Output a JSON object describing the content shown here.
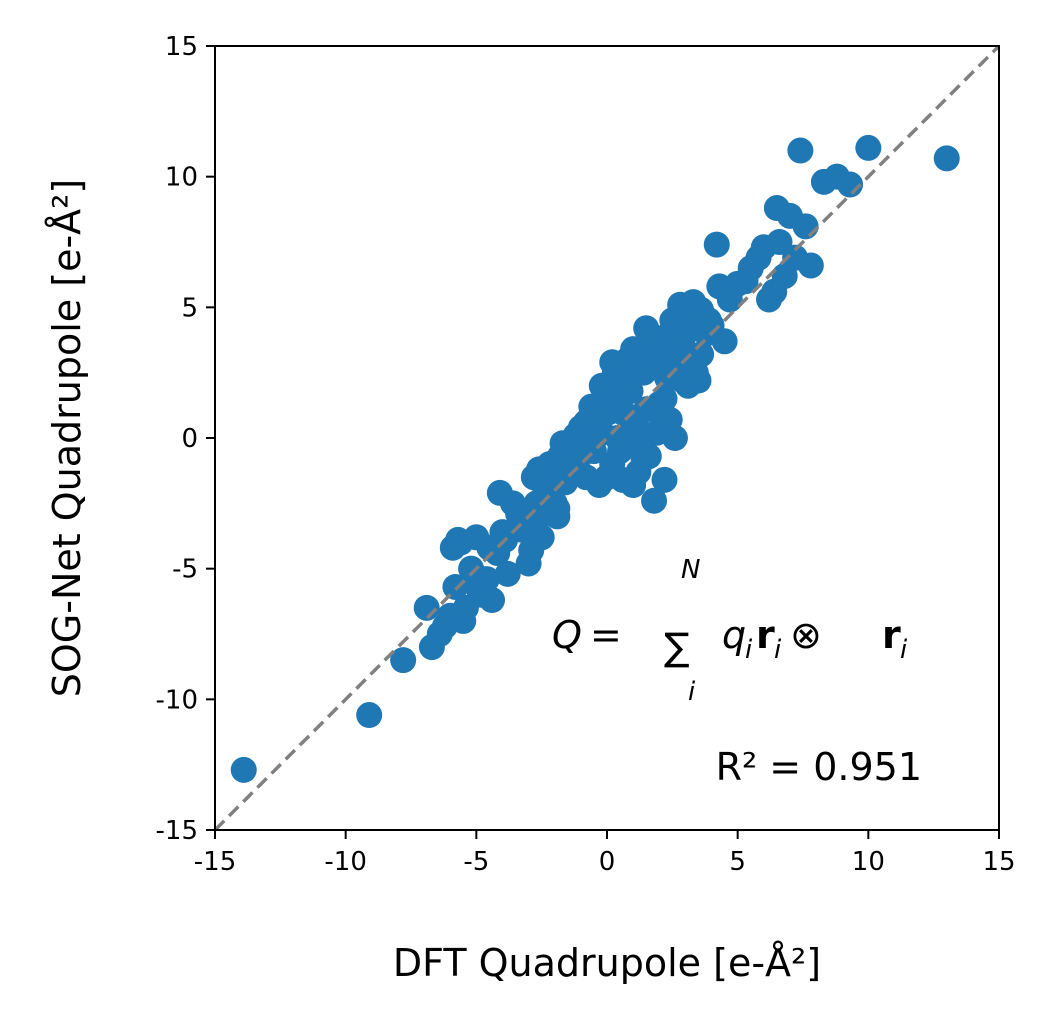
{
  "chart_data": {
    "type": "scatter",
    "title": "",
    "xlabel": "DFT Quadrupole [e-Å²]",
    "ylabel": "SOG-Net Quadrupole [e-Å²]",
    "xlim": [
      -15,
      15
    ],
    "ylim": [
      -15,
      15
    ],
    "xticks": [
      "-15",
      "-10",
      "-5",
      "0",
      "5",
      "10",
      "15"
    ],
    "yticks": [
      "-15",
      "-10",
      "-5",
      "0",
      "5",
      "10",
      "15"
    ],
    "grid": false,
    "colors": {
      "points": "#1f77b4",
      "reference_line": "#808080"
    },
    "reference_line": {
      "from": [
        -15,
        -15
      ],
      "to": [
        15,
        15
      ],
      "style": "dashed"
    },
    "annotations": {
      "formula": "Q = Σ_i^N q_i r_i ⊗ r_i",
      "r2": "R² = 0.951"
    },
    "series": [
      {
        "x": [
          -13.9,
          -9.1,
          -7.8,
          -6.9,
          -6.7,
          -6.4,
          -6.2,
          -6.0,
          -5.9,
          -5.8,
          -5.7,
          -5.6,
          -5.5,
          -5.4,
          -5.2,
          -5.0,
          -5.0,
          -4.8,
          -4.6,
          -4.5,
          -4.4,
          -4.2,
          -4.0,
          -3.9,
          -3.8,
          -3.6,
          -3.4,
          -3.2,
          -3.0,
          -2.8,
          -2.7,
          -2.6,
          -2.5,
          -2.4,
          -2.3,
          -2.2,
          -2.1,
          -2.0,
          -1.9,
          -1.8,
          -1.7,
          -1.6,
          -1.5,
          -1.4,
          -1.3,
          -1.2,
          -1.1,
          -1.0,
          -0.9,
          -0.8,
          -0.7,
          -0.6,
          -0.5,
          -0.4,
          -0.3,
          -0.2,
          -0.1,
          0.0,
          0.1,
          0.2,
          0.3,
          0.4,
          0.5,
          0.6,
          0.7,
          0.8,
          0.9,
          1.0,
          1.1,
          1.2,
          1.3,
          1.4,
          1.5,
          1.6,
          1.7,
          1.8,
          1.9,
          2.0,
          2.1,
          2.2,
          2.3,
          2.4,
          2.5,
          2.6,
          2.7,
          2.8,
          2.9,
          3.0,
          3.1,
          3.2,
          3.3,
          3.4,
          3.5,
          3.6,
          3.8,
          4.0,
          4.2,
          4.3,
          4.5,
          4.7,
          5.0,
          5.3,
          5.5,
          5.8,
          6.0,
          6.2,
          6.4,
          6.5,
          6.6,
          6.8,
          7.0,
          7.2,
          7.4,
          7.6,
          7.8,
          8.3,
          8.8,
          9.3,
          10.0,
          13.0,
          -0.5,
          0.2,
          0.6,
          1.0,
          1.4,
          1.8,
          2.2,
          -0.8,
          -1.5,
          -2.0,
          0.0,
          0.5,
          1.2,
          1.6,
          -3.3,
          -1.9,
          -0.3,
          0.9,
          2.6,
          3.1,
          3.6,
          -4.1,
          -2.6,
          -1.0,
          0.3,
          1.1,
          1.9,
          2.4,
          -0.2,
          0.7,
          1.3,
          2.0,
          2.9,
          -1.3,
          -0.6,
          0.4,
          1.5,
          2.3,
          3.4,
          0.8,
          1.0,
          -0.1,
          2.1,
          2.7,
          1.6,
          0.2,
          -2.9,
          -1.7,
          3.9,
          -4.9
        ],
        "y": [
          -12.7,
          -10.6,
          -8.5,
          -6.5,
          -8.0,
          -7.5,
          -7.2,
          -6.8,
          -4.2,
          -5.7,
          -3.9,
          -4.0,
          -7.0,
          -6.5,
          -5.0,
          -5.3,
          -3.8,
          -6.0,
          -5.4,
          -4.2,
          -6.2,
          -4.4,
          -3.6,
          -3.9,
          -5.2,
          -2.5,
          -2.9,
          -3.3,
          -4.8,
          -1.5,
          -2.5,
          -3.0,
          -3.8,
          -2.2,
          -1.9,
          -1.0,
          -2.4,
          -1.6,
          -2.7,
          -0.7,
          -0.2,
          -1.7,
          -1.0,
          -0.6,
          -1.3,
          0.1,
          -0.8,
          0.4,
          -0.4,
          0.6,
          0.3,
          1.2,
          0.8,
          1.0,
          0.5,
          2.0,
          1.4,
          1.7,
          1.0,
          1.5,
          2.5,
          2.0,
          1.2,
          2.8,
          2.2,
          3.0,
          1.8,
          3.4,
          2.6,
          2.8,
          3.1,
          2.5,
          4.2,
          3.5,
          3.0,
          2.7,
          3.6,
          3.8,
          3.2,
          1.5,
          3.5,
          4.0,
          4.5,
          4.0,
          3.3,
          5.1,
          3.8,
          4.6,
          5.0,
          4.8,
          5.2,
          4.5,
          2.2,
          4.9,
          4.0,
          4.3,
          7.4,
          5.8,
          3.7,
          5.3,
          5.9,
          6.0,
          6.5,
          6.9,
          7.3,
          5.3,
          5.6,
          8.8,
          7.5,
          6.2,
          8.5,
          6.9,
          11.0,
          8.1,
          6.6,
          9.8,
          10.0,
          9.7,
          11.1,
          10.7,
          -0.5,
          -1.0,
          -1.6,
          -1.8,
          -0.8,
          -2.4,
          -1.6,
          -1.5,
          -0.3,
          -2.5,
          -1.5,
          -0.5,
          -1.3,
          -0.7,
          -3.5,
          -3.0,
          -1.8,
          -0.1,
          0.0,
          2.0,
          3.2,
          -2.1,
          -1.2,
          -0.2,
          2.3,
          0.6,
          0.2,
          0.7,
          0.2,
          0.9,
          0.2,
          1.3,
          2.2,
          -0.6,
          0.9,
          0.0,
          1.1,
          2.3,
          2.5,
          2.0,
          0.7,
          0.9,
          1.0,
          3.1,
          4.0,
          2.9,
          -4.3,
          -1.1,
          4.5,
          -5.8
        ]
      }
    ]
  }
}
